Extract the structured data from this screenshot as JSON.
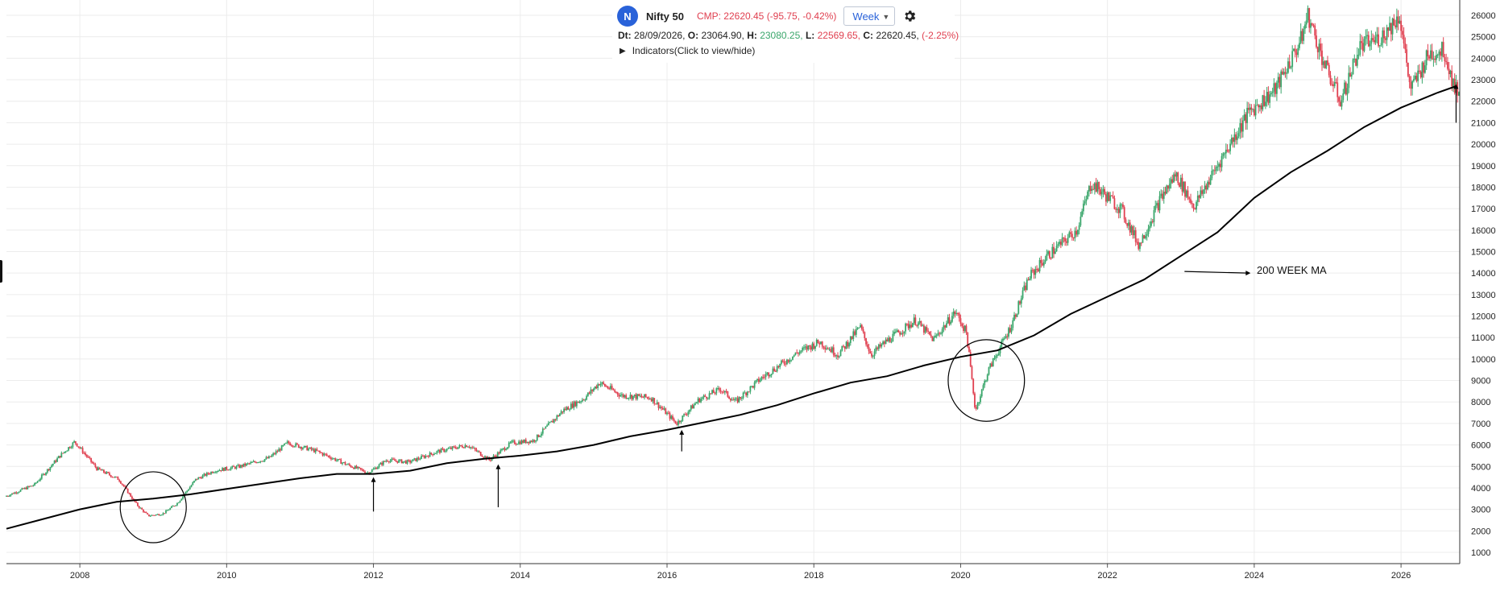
{
  "header": {
    "logo_letter": "N",
    "symbol": "Nifty 50",
    "cmp": "CMP: 22620.45 (-95.75, -0.42%)",
    "timeframe": "Week",
    "date_label": "Dt:",
    "date_value": "28/09/2026,",
    "open_label": "O:",
    "open_value": "23064.90,",
    "high_label": "H:",
    "high_value": "23080.25,",
    "low_label": "L:",
    "low_value": "22569.65,",
    "close_label": "C:",
    "close_value": "22620.45,",
    "change_value": "(-2.25%)",
    "indicators_label": "Indicators(Click to view/hide)"
  },
  "annotation": {
    "ma_label": "200 WEEK MA"
  },
  "colors": {
    "up": "#3aa66b",
    "down": "#e04050",
    "ma_line": "#000000",
    "grid": "#ececec",
    "accent": "#2962d9"
  },
  "icons": {
    "settings": "gear-icon",
    "expand": "triangle-right-icon",
    "dropdown": "chevron-down-icon"
  },
  "chart_data": {
    "type": "candlestick",
    "title": "Nifty 50",
    "x_range": [
      2007.0,
      2026.8
    ],
    "ylim": [
      1000,
      26000
    ],
    "x_ticks": [
      "2008",
      "2010",
      "2012",
      "2014",
      "2016",
      "2018",
      "2020",
      "2022",
      "2024",
      "2026"
    ],
    "y_ticks": [
      "26000",
      "25000",
      "24000",
      "23000",
      "22000",
      "21000",
      "20000",
      "19000",
      "18000",
      "17000",
      "16000",
      "15000",
      "14000",
      "13000",
      "12000",
      "11000",
      "10000",
      "9000",
      "8000",
      "7000",
      "6000",
      "5000",
      "4000",
      "3000",
      "2000",
      "1000"
    ],
    "grid": true,
    "price_path": [
      [
        2007.0,
        3600
      ],
      [
        2007.4,
        4150
      ],
      [
        2007.75,
        5500
      ],
      [
        2007.95,
        6150
      ],
      [
        2008.25,
        4900
      ],
      [
        2008.55,
        4400
      ],
      [
        2008.8,
        3200
      ],
      [
        2008.95,
        2700
      ],
      [
        2009.15,
        2800
      ],
      [
        2009.35,
        3300
      ],
      [
        2009.6,
        4400
      ],
      [
        2009.85,
        4800
      ],
      [
        2010.2,
        5000
      ],
      [
        2010.6,
        5400
      ],
      [
        2010.85,
        6100
      ],
      [
        2011.25,
        5700
      ],
      [
        2011.65,
        5100
      ],
      [
        2011.95,
        4700
      ],
      [
        2012.2,
        5300
      ],
      [
        2012.5,
        5200
      ],
      [
        2012.9,
        5700
      ],
      [
        2013.3,
        6000
      ],
      [
        2013.6,
        5300
      ],
      [
        2013.9,
        6100
      ],
      [
        2014.2,
        6200
      ],
      [
        2014.6,
        7600
      ],
      [
        2014.9,
        8200
      ],
      [
        2015.1,
        8900
      ],
      [
        2015.4,
        8300
      ],
      [
        2015.8,
        8200
      ],
      [
        2016.15,
        7000
      ],
      [
        2016.45,
        8100
      ],
      [
        2016.75,
        8600
      ],
      [
        2016.95,
        8000
      ],
      [
        2017.3,
        9100
      ],
      [
        2017.8,
        10300
      ],
      [
        2018.1,
        10800
      ],
      [
        2018.35,
        10200
      ],
      [
        2018.65,
        11500
      ],
      [
        2018.8,
        10200
      ],
      [
        2019.0,
        10800
      ],
      [
        2019.4,
        11800
      ],
      [
        2019.65,
        10900
      ],
      [
        2019.95,
        12200
      ],
      [
        2020.1,
        11200
      ],
      [
        2020.22,
        7600
      ],
      [
        2020.4,
        9500
      ],
      [
        2020.7,
        11500
      ],
      [
        2020.95,
        13800
      ],
      [
        2021.2,
        14800
      ],
      [
        2021.6,
        16000
      ],
      [
        2021.8,
        18200
      ],
      [
        2022.2,
        17000
      ],
      [
        2022.45,
        15300
      ],
      [
        2022.75,
        17500
      ],
      [
        2022.95,
        18600
      ],
      [
        2023.2,
        17100
      ],
      [
        2023.6,
        19500
      ],
      [
        2023.95,
        21500
      ],
      [
        2024.3,
        22500
      ],
      [
        2024.65,
        24800
      ],
      [
        2024.75,
        26000
      ],
      [
        2025.0,
        23500
      ],
      [
        2025.2,
        22000
      ],
      [
        2025.45,
        24500
      ],
      [
        2025.75,
        25000
      ],
      [
        2026.0,
        26000
      ],
      [
        2026.15,
        22500
      ],
      [
        2026.4,
        24200
      ],
      [
        2026.6,
        24400
      ],
      [
        2026.75,
        22620
      ]
    ],
    "series": [
      {
        "name": "200 WEEK MA",
        "points": [
          [
            2007.0,
            2100
          ],
          [
            2007.5,
            2550
          ],
          [
            2008.0,
            3000
          ],
          [
            2008.5,
            3350
          ],
          [
            2009.0,
            3500
          ],
          [
            2009.5,
            3700
          ],
          [
            2010.0,
            3950
          ],
          [
            2010.5,
            4200
          ],
          [
            2011.0,
            4450
          ],
          [
            2011.5,
            4650
          ],
          [
            2012.0,
            4650
          ],
          [
            2012.5,
            4800
          ],
          [
            2013.0,
            5150
          ],
          [
            2013.5,
            5350
          ],
          [
            2014.0,
            5500
          ],
          [
            2014.5,
            5700
          ],
          [
            2015.0,
            6000
          ],
          [
            2015.5,
            6400
          ],
          [
            2016.0,
            6700
          ],
          [
            2016.5,
            7050
          ],
          [
            2017.0,
            7400
          ],
          [
            2017.5,
            7850
          ],
          [
            2018.0,
            8400
          ],
          [
            2018.5,
            8900
          ],
          [
            2019.0,
            9200
          ],
          [
            2019.5,
            9700
          ],
          [
            2020.0,
            10100
          ],
          [
            2020.5,
            10400
          ],
          [
            2021.0,
            11100
          ],
          [
            2021.5,
            12100
          ],
          [
            2022.0,
            12900
          ],
          [
            2022.5,
            13700
          ],
          [
            2023.0,
            14800
          ],
          [
            2023.5,
            15900
          ],
          [
            2024.0,
            17500
          ],
          [
            2024.5,
            18700
          ],
          [
            2025.0,
            19700
          ],
          [
            2025.5,
            20800
          ],
          [
            2026.0,
            21700
          ],
          [
            2026.5,
            22400
          ],
          [
            2026.75,
            22700
          ]
        ]
      }
    ],
    "annotations": [
      {
        "type": "circle",
        "x": 2009.0,
        "y": 3100,
        "rx_years": 0.45,
        "ry_value": 1650
      },
      {
        "type": "circle",
        "x": 2020.35,
        "y": 9000,
        "rx_years": 0.52,
        "ry_value": 1900
      },
      {
        "type": "arrow",
        "x": 2012.0,
        "from_y": 2900,
        "to_y": 4500
      },
      {
        "type": "arrow",
        "x": 2013.7,
        "from_y": 3100,
        "to_y": 5100
      },
      {
        "type": "arrow",
        "x": 2016.2,
        "from_y": 5700,
        "to_y": 6700
      },
      {
        "type": "arrow",
        "x": 2026.75,
        "from_y": 21000,
        "to_y": 22800
      },
      {
        "type": "arrow",
        "label": "200 WEEK MA",
        "from_x": 2023.05,
        "from_y": 14000,
        "to_x": 2023.95,
        "to_y": 14000
      }
    ]
  }
}
